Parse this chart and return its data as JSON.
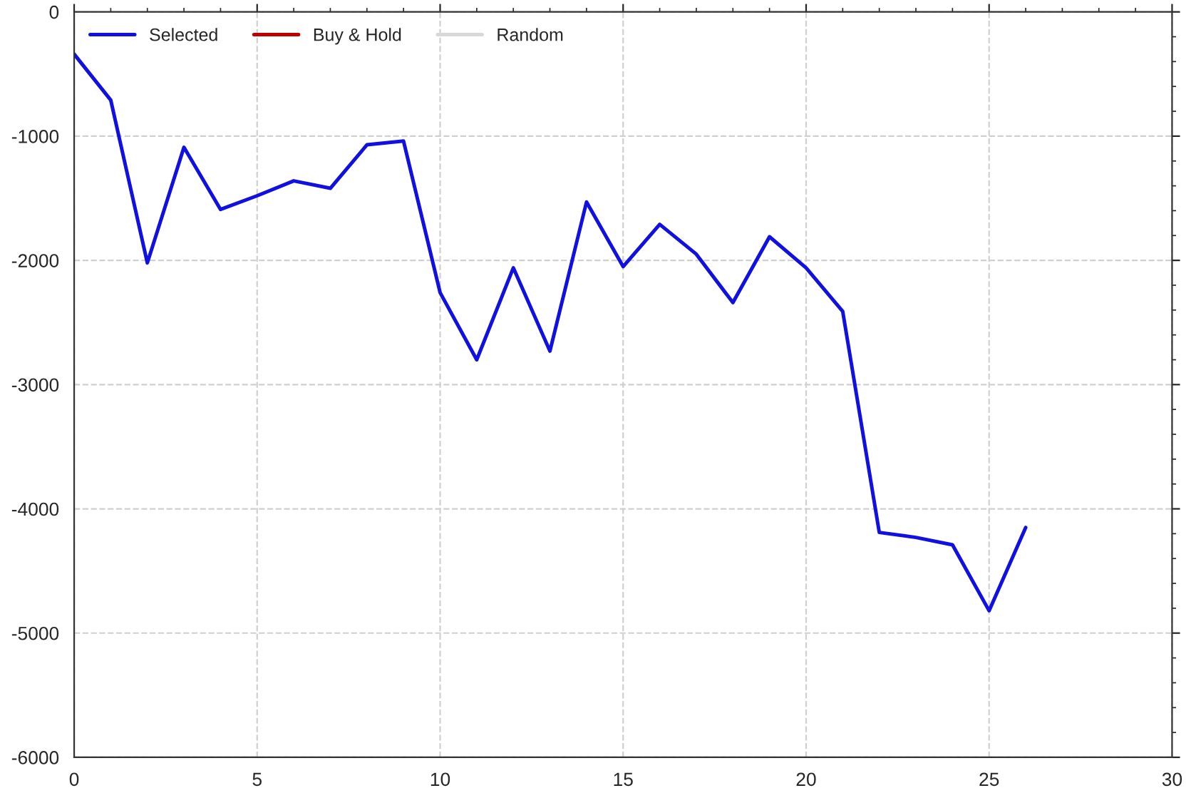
{
  "chart_data": {
    "type": "line",
    "x": [
      0,
      1,
      2,
      3,
      4,
      5,
      6,
      7,
      8,
      9,
      10,
      11,
      12,
      13,
      14,
      15,
      16,
      17,
      18,
      19,
      20,
      21,
      22,
      23,
      24,
      25,
      26
    ],
    "series": [
      {
        "name": "Selected",
        "color": "#1010e0",
        "values": [
          -340,
          -710,
          -2020,
          -1090,
          -1590,
          -1480,
          -1360,
          -1420,
          -1070,
          -1040,
          -2260,
          -2800,
          -2060,
          -2730,
          -1530,
          -2050,
          -1710,
          -1950,
          -2340,
          -1810,
          -2060,
          -2410,
          -4190,
          -4230,
          -4290,
          -4820,
          -4150
        ]
      },
      {
        "name": "Buy & Hold",
        "color": "#c00000",
        "values": [
          null,
          null,
          null,
          null,
          null,
          null,
          null,
          null,
          null,
          null,
          null,
          null,
          null,
          null,
          null,
          null,
          null,
          null,
          null,
          null,
          null,
          null,
          null,
          null,
          null,
          null,
          null
        ]
      },
      {
        "name": "Random",
        "color": "#d8d8d8",
        "values": [
          null,
          null,
          null,
          null,
          null,
          null,
          null,
          null,
          null,
          null,
          null,
          null,
          null,
          null,
          null,
          null,
          null,
          null,
          null,
          null,
          null,
          null,
          null,
          null,
          null,
          null,
          null
        ]
      }
    ],
    "xlim": [
      0,
      30
    ],
    "xticks": [
      0,
      5,
      10,
      15,
      20,
      25,
      30
    ],
    "ylim": [
      -6000,
      0
    ],
    "yticks": [
      -6000,
      -5000,
      -4000,
      -3000,
      -2000,
      -1000,
      0
    ],
    "grid": true,
    "legend": "top left",
    "line_style": "solid",
    "marker": "none"
  }
}
